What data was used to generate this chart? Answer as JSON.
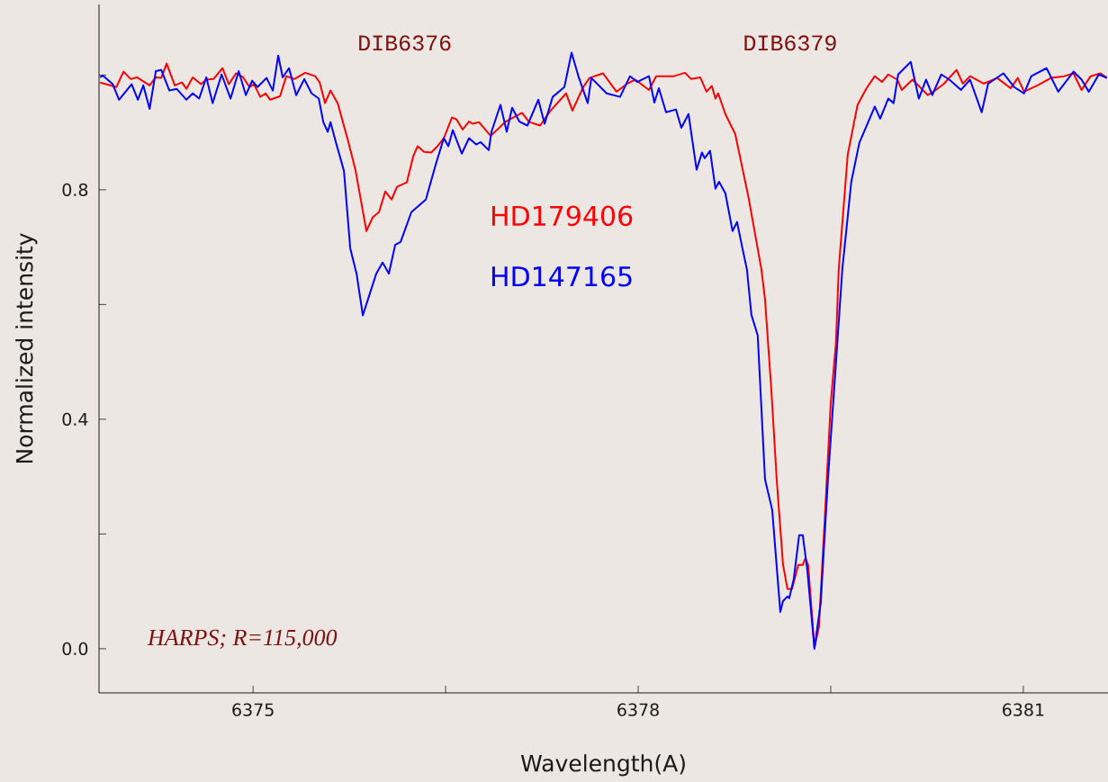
{
  "chart_data": {
    "type": "line",
    "xlabel": "Wavelength(A)",
    "ylabel": "Normalized intensity",
    "xlim": [
      6373.8,
      6381.66
    ],
    "ylim": [
      -0.077,
      1.123
    ],
    "xticks": [
      6375,
      {
        "value": 6376.5,
        "label": null
      },
      6378,
      {
        "value": 6379.5,
        "label": null
      },
      6381
    ],
    "yticks": [
      {
        "value": 0,
        "label": "0.0"
      },
      {
        "value": 0.2,
        "label": null
      },
      {
        "value": 0.4,
        "label": "0.4"
      },
      {
        "value": 0.6,
        "label": null
      },
      {
        "value": 0.8,
        "label": "0.8"
      },
      {
        "value": 1.0,
        "label": null
      }
    ],
    "annotations": [
      "DIB6376",
      "DIB6379",
      "HARPS; R=115,000"
    ],
    "series": [
      {
        "name": "HD179406",
        "color": "#ff0000",
        "x": [
          6373.809,
          6373.935,
          6373.991,
          6374.047,
          6374.096,
          6374.194,
          6374.243,
          6374.285,
          6374.327,
          6374.39,
          6374.446,
          6374.481,
          6374.53,
          6374.594,
          6374.636,
          6374.692,
          6374.762,
          6374.811,
          6374.867,
          6374.923,
          6374.972,
          6375.007,
          6375.056,
          6375.098,
          6375.133,
          6375.21,
          6375.259,
          6375.322,
          6375.406,
          6375.484,
          6375.519,
          6375.561,
          6375.603,
          6375.659,
          6375.743,
          6375.799,
          6375.883,
          6375.932,
          6375.981,
          6376.03,
          6376.079,
          6376.121,
          6376.198,
          6376.247,
          6376.282,
          6376.332,
          6376.388,
          6376.437,
          6376.486,
          6376.549,
          6376.584,
          6376.633,
          6376.682,
          6376.71,
          6376.759,
          6376.85,
          6376.899,
          6376.962,
          6377.095,
          6377.151,
          6377.236,
          6377.313,
          6377.439,
          6377.488,
          6377.572,
          6377.621,
          6377.726,
          6377.831,
          6377.915,
          6377.978,
          6378.084,
          6378.14,
          6378.28,
          6378.364,
          6378.413,
          6378.483,
          6378.532,
          6378.574,
          6378.602,
          6378.623,
          6378.679,
          6378.756,
          6378.861,
          6378.96,
          6378.988,
          6379.037,
          6379.079,
          6379.128,
          6379.163,
          6379.198,
          6379.247,
          6379.282,
          6379.303,
          6379.324,
          6379.373,
          6379.408,
          6379.457,
          6379.499,
          6379.541,
          6379.562,
          6379.632,
          6379.709,
          6379.779,
          6379.843,
          6379.899,
          6379.948,
          6380.018,
          6380.053,
          6380.137,
          6380.256,
          6380.319,
          6380.382,
          6380.48,
          6380.529,
          6380.585,
          6380.691,
          6380.796,
          6380.901,
          6380.957,
          6381.006,
          6381.111,
          6381.216,
          6381.321,
          6381.391,
          6381.454,
          6381.524,
          6381.602,
          6381.651
        ],
        "values": [
          0.987,
          0.979,
          1.006,
          0.993,
          0.996,
          0.982,
          0.996,
          0.995,
          1.02,
          0.982,
          0.987,
          0.976,
          0.996,
          0.984,
          0.992,
          0.993,
          1.012,
          0.984,
          1.003,
          0.996,
          0.979,
          0.984,
          0.962,
          0.968,
          0.957,
          0.963,
          0.998,
          0.993,
          1.004,
          0.998,
          0.987,
          0.951,
          0.973,
          0.951,
          0.883,
          0.833,
          0.728,
          0.752,
          0.761,
          0.797,
          0.783,
          0.805,
          0.813,
          0.858,
          0.876,
          0.866,
          0.865,
          0.876,
          0.89,
          0.926,
          0.923,
          0.905,
          0.919,
          0.915,
          0.918,
          0.894,
          0.904,
          0.918,
          0.934,
          0.918,
          0.912,
          0.937,
          0.968,
          0.938,
          0.979,
          0.995,
          1.003,
          0.971,
          0.985,
          0.992,
          0.974,
          0.998,
          0.998,
          1.004,
          0.993,
          0.996,
          0.971,
          0.981,
          0.959,
          0.968,
          0.932,
          0.897,
          0.785,
          0.661,
          0.609,
          0.452,
          0.295,
          0.147,
          0.104,
          0.104,
          0.146,
          0.146,
          0.158,
          0.146,
          0.002,
          0.038,
          0.242,
          0.425,
          0.535,
          0.661,
          0.861,
          0.948,
          0.977,
          0.998,
          0.988,
          1.001,
          0.992,
          0.974,
          0.992,
          0.965,
          0.974,
          0.985,
          1.009,
          0.985,
          0.998,
          0.985,
          0.995,
          0.977,
          0.995,
          0.971,
          0.982,
          0.995,
          0.998,
          1.003,
          0.974,
          0.998,
          1.003,
          0.995
        ]
      },
      {
        "name": "HD147165",
        "color": "#0000ff",
        "x": [
          6373.809,
          6373.83,
          6373.907,
          6373.956,
          6374.054,
          6374.103,
          6374.145,
          6374.194,
          6374.243,
          6374.285,
          6374.348,
          6374.404,
          6374.481,
          6374.53,
          6374.58,
          6374.636,
          6374.685,
          6374.755,
          6374.825,
          6374.888,
          6374.944,
          6374.993,
          6375.035,
          6375.105,
          6375.154,
          6375.196,
          6375.231,
          6375.28,
          6375.336,
          6375.399,
          6375.456,
          6375.512,
          6375.547,
          6375.582,
          6375.603,
          6375.645,
          6375.708,
          6375.757,
          6375.806,
          6375.855,
          6375.911,
          6375.96,
          6376.009,
          6376.058,
          6376.107,
          6376.149,
          6376.233,
          6376.346,
          6376.423,
          6376.486,
          6376.521,
          6376.556,
          6376.626,
          6376.682,
          6376.738,
          6376.773,
          6376.836,
          6376.857,
          6376.927,
          6376.976,
          6377.018,
          6377.074,
          6377.137,
          6377.222,
          6377.271,
          6377.334,
          6377.425,
          6377.481,
          6377.537,
          6377.607,
          6377.635,
          6377.754,
          6377.859,
          6377.936,
          6377.992,
          6378.084,
          6378.126,
          6378.161,
          6378.217,
          6378.294,
          6378.336,
          6378.392,
          6378.455,
          6378.497,
          6378.518,
          6378.56,
          6378.602,
          6378.63,
          6378.679,
          6378.735,
          6378.77,
          6378.812,
          6378.847,
          6378.882,
          6378.931,
          6378.988,
          6379.044,
          6379.107,
          6379.128,
          6379.163,
          6379.177,
          6379.212,
          6379.254,
          6379.282,
          6379.317,
          6379.373,
          6379.422,
          6379.478,
          6379.534,
          6379.59,
          6379.66,
          6379.723,
          6379.843,
          6379.885,
          6379.948,
          6379.99,
          6380.025,
          6380.123,
          6380.186,
          6380.242,
          6380.291,
          6380.361,
          6380.424,
          6380.515,
          6380.585,
          6380.676,
          6380.726,
          6380.845,
          6380.929,
          6381.006,
          6381.062,
          6381.181,
          6381.272,
          6381.391,
          6381.454,
          6381.51,
          6381.588,
          6381.651
        ],
        "values": [
          0.996,
          0.999,
          0.984,
          0.957,
          0.984,
          0.957,
          0.982,
          0.941,
          1.007,
          1.009,
          0.973,
          0.976,
          0.957,
          0.968,
          0.959,
          0.996,
          0.951,
          1.001,
          0.959,
          1.007,
          0.965,
          0.99,
          0.979,
          0.995,
          0.973,
          1.034,
          0.996,
          1.012,
          0.965,
          0.993,
          0.968,
          0.959,
          0.918,
          0.901,
          0.918,
          0.883,
          0.833,
          0.698,
          0.654,
          0.581,
          0.62,
          0.654,
          0.673,
          0.654,
          0.704,
          0.709,
          0.761,
          0.783,
          0.844,
          0.89,
          0.876,
          0.904,
          0.863,
          0.89,
          0.879,
          0.883,
          0.869,
          0.901,
          0.948,
          0.901,
          0.943,
          0.919,
          0.912,
          0.957,
          0.915,
          0.962,
          0.979,
          1.039,
          0.996,
          0.951,
          0.995,
          0.968,
          0.962,
          0.998,
          0.988,
          0.998,
          0.952,
          0.977,
          0.935,
          0.94,
          0.908,
          0.932,
          0.835,
          0.865,
          0.855,
          0.868,
          0.802,
          0.814,
          0.794,
          0.728,
          0.744,
          0.698,
          0.661,
          0.582,
          0.546,
          0.295,
          0.242,
          0.064,
          0.083,
          0.091,
          0.088,
          0.122,
          0.198,
          0.198,
          0.138,
          0.0,
          0.08,
          0.295,
          0.477,
          0.661,
          0.814,
          0.882,
          0.945,
          0.924,
          0.959,
          0.951,
          1.001,
          1.023,
          0.959,
          0.992,
          0.965,
          1.001,
          0.992,
          0.974,
          0.992,
          0.935,
          0.985,
          1.003,
          0.979,
          0.968,
          0.998,
          1.012,
          0.971,
          1.006,
          0.992,
          0.971,
          1.001,
          0.995
        ]
      }
    ]
  }
}
